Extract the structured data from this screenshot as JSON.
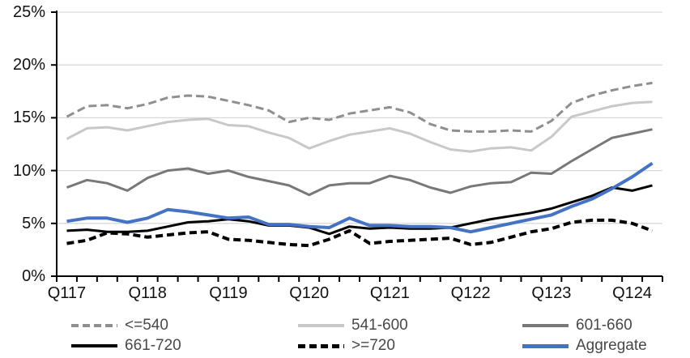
{
  "chart_data": {
    "type": "line",
    "title": "",
    "xlabel": "",
    "ylabel": "",
    "ylim": [
      0,
      25
    ],
    "grid": true,
    "legend_position": "bottom",
    "n_points": 30,
    "x_start_label": "Q117",
    "x_label_every": 4,
    "y_ticks": [
      {
        "label": "0%",
        "value": 0
      },
      {
        "label": "5%",
        "value": 5
      },
      {
        "label": "10%",
        "value": 10
      },
      {
        "label": "15%",
        "value": 15
      },
      {
        "label": "20%",
        "value": 20
      },
      {
        "label": "25%",
        "value": 25
      }
    ],
    "x_labels": [
      {
        "label": "Q117",
        "point": 1
      },
      {
        "label": "Q118",
        "point": 5
      },
      {
        "label": "Q119",
        "point": 9
      },
      {
        "label": "Q120",
        "point": 13
      },
      {
        "label": "Q121",
        "point": 17
      },
      {
        "label": "Q122",
        "point": 21
      },
      {
        "label": "Q123",
        "point": 25
      },
      {
        "label": "Q124",
        "point": 29
      }
    ],
    "axis_color": "#000000",
    "gridline_color": "#d9d9d9",
    "series": [
      {
        "name": "<=540",
        "color": "#8f8f8f",
        "dash": "10 5",
        "width": 3,
        "values": [
          15.1,
          16.1,
          16.2,
          15.9,
          16.3,
          16.9,
          17.1,
          17.0,
          16.6,
          16.2,
          15.7,
          14.6,
          15.0,
          14.8,
          15.4,
          15.7,
          16.0,
          15.5,
          14.4,
          13.8,
          13.7,
          13.7,
          13.8,
          13.7,
          14.7,
          16.4,
          17.1,
          17.6,
          18.0,
          18.3
        ]
      },
      {
        "name": "541-600",
        "color": "#c8c8c8",
        "dash": "",
        "width": 3,
        "values": [
          13.0,
          14.0,
          14.1,
          13.8,
          14.2,
          14.6,
          14.8,
          14.9,
          14.3,
          14.2,
          13.6,
          13.1,
          12.1,
          12.8,
          13.4,
          13.7,
          14.0,
          13.5,
          12.7,
          12.0,
          11.8,
          12.1,
          12.2,
          11.9,
          13.2,
          15.1,
          15.6,
          16.1,
          16.4,
          16.5
        ]
      },
      {
        "name": "601-660",
        "color": "#787878",
        "dash": "",
        "width": 3,
        "values": [
          8.4,
          9.1,
          8.8,
          8.1,
          9.3,
          10.0,
          10.2,
          9.7,
          10.0,
          9.4,
          9.0,
          8.6,
          7.7,
          8.6,
          8.8,
          8.8,
          9.5,
          9.1,
          8.4,
          7.9,
          8.5,
          8.8,
          8.9,
          9.8,
          9.7,
          10.9,
          12.0,
          13.1,
          13.5,
          13.9
        ]
      },
      {
        "name": "661-720",
        "color": "#000000",
        "dash": "",
        "width": 3,
        "values": [
          4.3,
          4.4,
          4.2,
          4.2,
          4.3,
          4.7,
          5.1,
          5.2,
          5.4,
          5.2,
          4.8,
          4.8,
          4.6,
          4.0,
          4.7,
          4.5,
          4.6,
          4.5,
          4.5,
          4.6,
          5.0,
          5.4,
          5.7,
          6.0,
          6.4,
          7.0,
          7.6,
          8.4,
          8.1,
          8.6
        ]
      },
      {
        "name": ">=720",
        "color": "#000000",
        "dash": "9 5",
        "width": 4,
        "values": [
          3.1,
          3.4,
          4.1,
          4.0,
          3.7,
          3.9,
          4.1,
          4.2,
          3.5,
          3.4,
          3.2,
          3.0,
          2.9,
          3.5,
          4.3,
          3.1,
          3.3,
          3.4,
          3.5,
          3.6,
          3.0,
          3.2,
          3.7,
          4.2,
          4.5,
          5.1,
          5.3,
          5.3,
          5.0,
          4.3
        ]
      },
      {
        "name": "Aggregate",
        "color": "#4472c4",
        "dash": "",
        "width": 4,
        "values": [
          5.2,
          5.5,
          5.5,
          5.1,
          5.5,
          6.3,
          6.1,
          5.8,
          5.5,
          5.6,
          4.9,
          4.9,
          4.7,
          4.6,
          5.5,
          4.8,
          4.8,
          4.7,
          4.7,
          4.6,
          4.2,
          4.6,
          5.0,
          5.4,
          5.8,
          6.6,
          7.3,
          8.3,
          9.4,
          10.7
        ]
      }
    ]
  }
}
